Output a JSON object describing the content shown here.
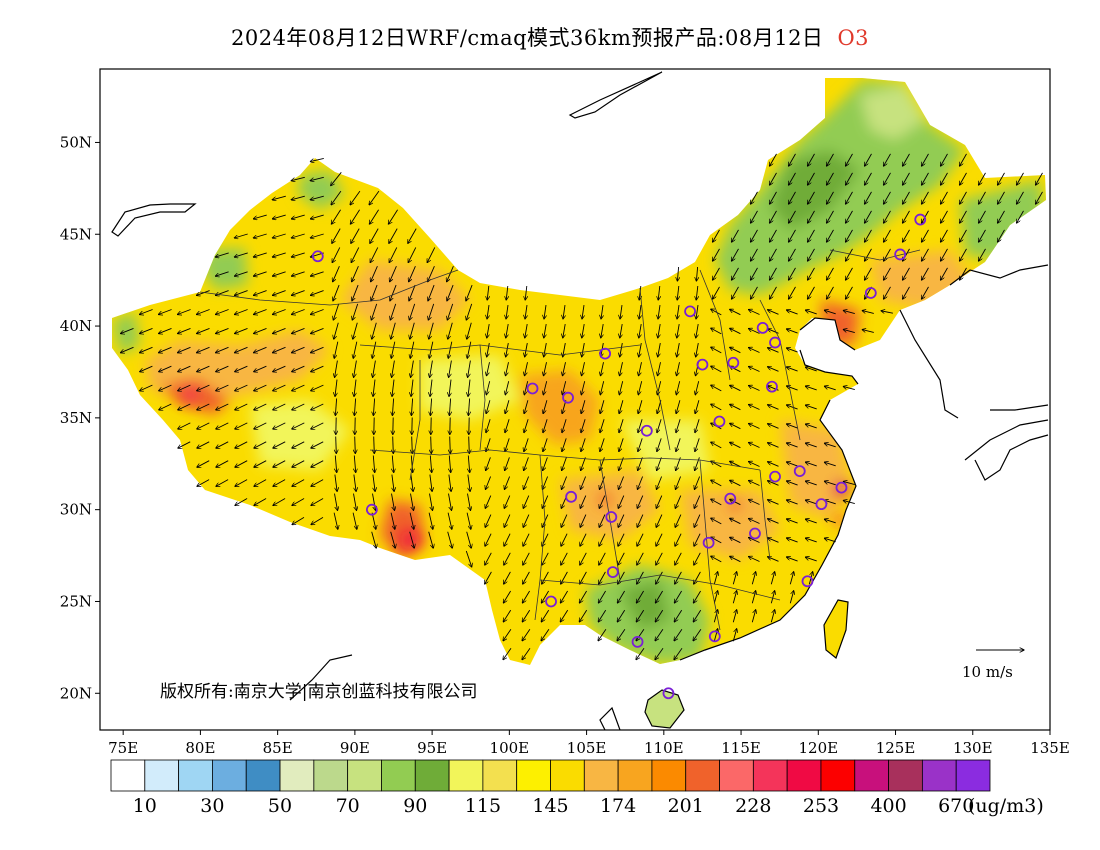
{
  "header": {
    "title": "2024年08月12日WRF/cmaq模式36km预报产品:08月12日",
    "variable": "O3"
  },
  "map": {
    "lon_range": [
      73.5,
      135
    ],
    "lat_range": [
      18,
      54
    ],
    "lon_ticks": [
      {
        "value": 75,
        "label": "75E"
      },
      {
        "value": 80,
        "label": "80E"
      },
      {
        "value": 85,
        "label": "85E"
      },
      {
        "value": 90,
        "label": "90E"
      },
      {
        "value": 95,
        "label": "95E"
      },
      {
        "value": 100,
        "label": "100E"
      },
      {
        "value": 105,
        "label": "105E"
      },
      {
        "value": 110,
        "label": "110E"
      },
      {
        "value": 115,
        "label": "115E"
      },
      {
        "value": 120,
        "label": "120E"
      },
      {
        "value": 125,
        "label": "125E"
      },
      {
        "value": 130,
        "label": "130E"
      },
      {
        "value": 135,
        "label": "135E"
      }
    ],
    "lat_ticks": [
      {
        "value": 20,
        "label": "20N"
      },
      {
        "value": 25,
        "label": "25N"
      },
      {
        "value": 30,
        "label": "30N"
      },
      {
        "value": 35,
        "label": "35N"
      },
      {
        "value": 40,
        "label": "40N"
      },
      {
        "value": 45,
        "label": "45N"
      },
      {
        "value": 50,
        "label": "50N"
      }
    ],
    "copyright": "版权所有:南京大学|南京创蓝科技有限公司",
    "wind_reference": "10 m/s",
    "station_markers": [
      [
        87.6,
        43.8
      ],
      [
        91.1,
        30.0
      ],
      [
        101.5,
        36.6
      ],
      [
        103.8,
        36.1
      ],
      [
        104.0,
        30.7
      ],
      [
        106.6,
        29.6
      ],
      [
        106.2,
        38.5
      ],
      [
        106.7,
        26.6
      ],
      [
        102.7,
        25.0
      ],
      [
        108.3,
        22.8
      ],
      [
        110.3,
        20.0
      ],
      [
        108.9,
        34.3
      ],
      [
        111.7,
        40.8
      ],
      [
        112.5,
        37.9
      ],
      [
        114.5,
        38.0
      ],
      [
        113.6,
        34.8
      ],
      [
        114.3,
        30.6
      ],
      [
        112.9,
        28.2
      ],
      [
        113.3,
        23.1
      ],
      [
        115.9,
        28.7
      ],
      [
        117.2,
        31.8
      ],
      [
        118.8,
        32.1
      ],
      [
        120.2,
        30.3
      ],
      [
        121.5,
        31.2
      ],
      [
        119.3,
        26.1
      ],
      [
        117.0,
        36.7
      ],
      [
        117.2,
        39.1
      ],
      [
        116.4,
        39.9
      ],
      [
        123.4,
        41.8
      ],
      [
        125.3,
        43.9
      ],
      [
        126.6,
        45.8
      ]
    ],
    "layers": [
      "concentration-fill",
      "wind-vectors",
      "province-boundaries",
      "coastlines"
    ]
  },
  "colorbar": {
    "unit": "(ug/m3)",
    "labels": [
      "10",
      "30",
      "50",
      "70",
      "90",
      "115",
      "145",
      "174",
      "201",
      "228",
      "253",
      "400",
      "670"
    ],
    "colors": [
      "#ffffff",
      "#d2ecfb",
      "#9fd6f3",
      "#6caee0",
      "#3f8dc4",
      "#e1ecbe",
      "#bcd98c",
      "#c7e27f",
      "#92cc52",
      "#6fac38",
      "#f2f55a",
      "#f3e04f",
      "#fdf000",
      "#fadc00",
      "#f8b643",
      "#f8a51f",
      "#fb8a00",
      "#f0622b",
      "#fb6868",
      "#f4345a",
      "#f00a44",
      "#fc0000",
      "#c8107c",
      "#a8305c",
      "#9a32c8",
      "#8b2ce0"
    ]
  }
}
